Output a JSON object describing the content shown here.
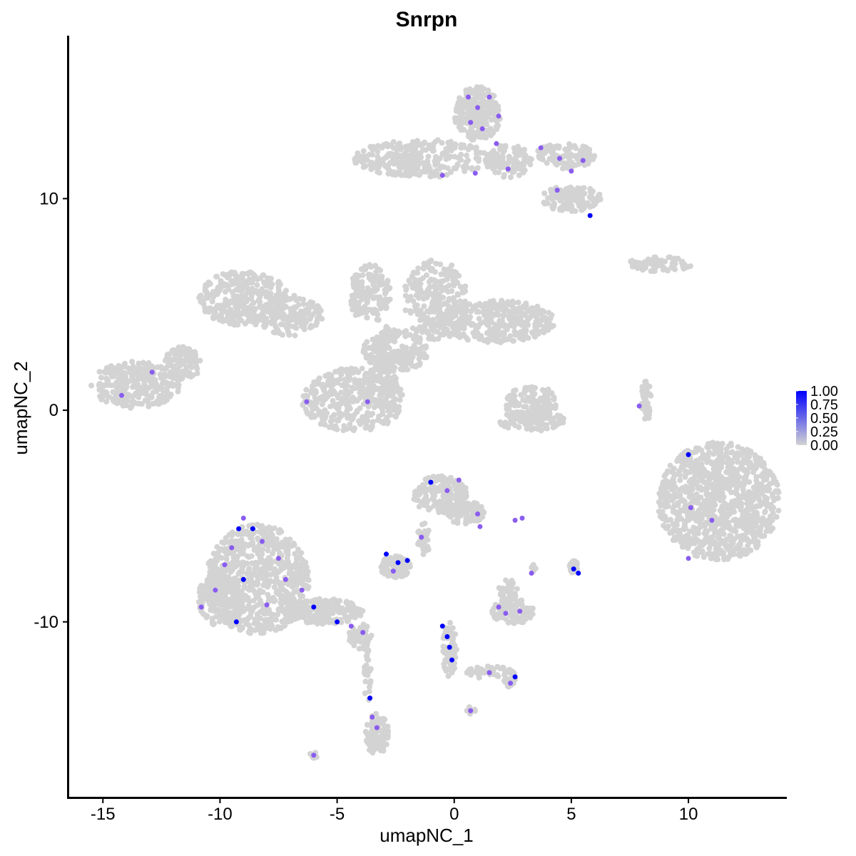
{
  "chart_data": {
    "type": "scatter",
    "title": "Snrpn",
    "xlabel": "umapNC_1",
    "ylabel": "umapNC_2",
    "xlim": [
      -16.5,
      14.2
    ],
    "ylim": [
      -18.3,
      17.7
    ],
    "x_ticks": [
      -15,
      -10,
      -5,
      0,
      5,
      10
    ],
    "y_ticks": [
      -10,
      0,
      10
    ],
    "x_tick_labels": [
      "-15",
      "-10",
      "-5",
      "0",
      "5",
      "10"
    ],
    "y_tick_labels": [
      "-10",
      "0",
      "10"
    ],
    "legend": {
      "type": "colorbar",
      "placement": "right",
      "min": 0,
      "max": 1,
      "labels": [
        "1.00",
        "0.75",
        "0.50",
        "0.25",
        "0.00"
      ],
      "low_color": "#d3d3d3",
      "high_color": "#0000ff"
    },
    "point_color_base": "#d3d3d3",
    "point_color_mid": "#8a5cf0",
    "point_color_high": "#0000ff",
    "clusters": [
      {
        "cx": -9.0,
        "cy": 5.3,
        "rx": 1.9,
        "ry": 1.3,
        "n": 320
      },
      {
        "cx": -7.0,
        "cy": 4.5,
        "rx": 1.4,
        "ry": 1.0,
        "n": 140
      },
      {
        "cx": -3.6,
        "cy": 5.5,
        "rx": 0.9,
        "ry": 1.4,
        "n": 150
      },
      {
        "cx": -0.8,
        "cy": 5.2,
        "rx": 1.4,
        "ry": 1.9,
        "n": 260
      },
      {
        "cx": 1.8,
        "cy": 4.2,
        "rx": 2.5,
        "ry": 1.0,
        "n": 330
      },
      {
        "cx": -2.5,
        "cy": 2.8,
        "rx": 1.4,
        "ry": 1.0,
        "n": 180
      },
      {
        "cx": -4.3,
        "cy": 0.5,
        "rx": 2.2,
        "ry": 1.5,
        "n": 380
      },
      {
        "cx": -2.9,
        "cy": 2.2,
        "rx": 0.5,
        "ry": 1.8,
        "n": 90
      },
      {
        "cx": -13.6,
        "cy": 1.2,
        "rx": 1.9,
        "ry": 1.1,
        "n": 300
      },
      {
        "cx": -11.6,
        "cy": 2.2,
        "rx": 0.8,
        "ry": 0.8,
        "n": 90
      },
      {
        "cx": 3.3,
        "cy": 0.3,
        "rx": 1.1,
        "ry": 0.9,
        "n": 150
      },
      {
        "cx": 3.3,
        "cy": -0.5,
        "rx": 1.4,
        "ry": 0.5,
        "n": 90
      },
      {
        "cx": 11.3,
        "cy": -4.3,
        "rx": 2.6,
        "ry": 2.8,
        "n": 950
      },
      {
        "cx": 8.2,
        "cy": 0.5,
        "rx": 0.25,
        "ry": 1.0,
        "n": 40
      },
      {
        "cx": -8.4,
        "cy": -8.0,
        "rx": 2.2,
        "ry": 2.6,
        "n": 720
      },
      {
        "cx": -10.0,
        "cy": -9.0,
        "rx": 1.0,
        "ry": 1.2,
        "n": 180
      },
      {
        "cx": -5.6,
        "cy": -9.5,
        "rx": 1.7,
        "ry": 0.6,
        "n": 220
      },
      {
        "cx": -4.0,
        "cy": -10.7,
        "rx": 0.5,
        "ry": 0.6,
        "n": 50
      },
      {
        "cx": -3.3,
        "cy": -15.3,
        "rx": 0.5,
        "ry": 1.0,
        "n": 90
      },
      {
        "cx": -3.7,
        "cy": -12.5,
        "rx": 0.15,
        "ry": 1.4,
        "n": 25
      },
      {
        "cx": -0.6,
        "cy": -4.0,
        "rx": 1.2,
        "ry": 0.9,
        "n": 170
      },
      {
        "cx": 0.5,
        "cy": -4.9,
        "rx": 0.8,
        "ry": 0.6,
        "n": 80
      },
      {
        "cx": -1.3,
        "cy": -6.1,
        "rx": 0.3,
        "ry": 0.8,
        "n": 30
      },
      {
        "cx": -2.5,
        "cy": -7.4,
        "rx": 0.7,
        "ry": 0.5,
        "n": 110
      },
      {
        "cx": 2.5,
        "cy": -9.5,
        "rx": 0.9,
        "ry": 0.6,
        "n": 110
      },
      {
        "cx": 2.3,
        "cy": -8.5,
        "rx": 0.4,
        "ry": 0.5,
        "n": 30
      },
      {
        "cx": 5.1,
        "cy": -7.4,
        "rx": 0.2,
        "ry": 0.3,
        "n": 40
      },
      {
        "cx": -0.2,
        "cy": -11.3,
        "rx": 0.3,
        "ry": 1.3,
        "n": 80
      },
      {
        "cx": 1.5,
        "cy": -12.4,
        "rx": 1.0,
        "ry": 0.3,
        "n": 40
      },
      {
        "cx": 2.4,
        "cy": -12.7,
        "rx": 0.3,
        "ry": 0.4,
        "n": 25
      },
      {
        "cx": 1.0,
        "cy": 14.0,
        "rx": 1.0,
        "ry": 1.3,
        "n": 220
      },
      {
        "cx": -1.4,
        "cy": 11.9,
        "rx": 2.9,
        "ry": 0.9,
        "n": 280
      },
      {
        "cx": 2.3,
        "cy": 11.8,
        "rx": 1.0,
        "ry": 0.8,
        "n": 110
      },
      {
        "cx": 4.7,
        "cy": 12.0,
        "rx": 1.3,
        "ry": 0.6,
        "n": 120
      },
      {
        "cx": 5.0,
        "cy": 10.0,
        "rx": 1.3,
        "ry": 0.6,
        "n": 130
      },
      {
        "cx": 8.8,
        "cy": 6.9,
        "rx": 1.4,
        "ry": 0.35,
        "n": 80
      },
      {
        "cx": 0.7,
        "cy": -14.2,
        "rx": 0.2,
        "ry": 0.2,
        "n": 10
      },
      {
        "cx": -6.0,
        "cy": -16.3,
        "rx": 0.2,
        "ry": 0.15,
        "n": 10
      },
      {
        "cx": 3.4,
        "cy": -7.5,
        "rx": 0.1,
        "ry": 0.3,
        "n": 8
      }
    ],
    "highlighted_points": [
      {
        "x": -9.0,
        "y": -5.1,
        "value": 0.8
      },
      {
        "x": -9.2,
        "y": -5.6,
        "value": 1.0
      },
      {
        "x": -8.6,
        "y": -5.6,
        "value": 1.0
      },
      {
        "x": -9.0,
        "y": -8.0,
        "value": 1.0
      },
      {
        "x": -9.3,
        "y": -10.0,
        "value": 1.0
      },
      {
        "x": -5.0,
        "y": -10.0,
        "value": 0.9
      },
      {
        "x": -6.0,
        "y": -9.3,
        "value": 0.9
      },
      {
        "x": -1.0,
        "y": -3.4,
        "value": 1.0
      },
      {
        "x": -2.9,
        "y": -6.8,
        "value": 1.0
      },
      {
        "x": -2.0,
        "y": -7.1,
        "value": 1.0
      },
      {
        "x": -2.4,
        "y": -7.2,
        "value": 1.0
      },
      {
        "x": 5.1,
        "y": -7.5,
        "value": 1.0
      },
      {
        "x": 5.3,
        "y": -7.7,
        "value": 1.0
      },
      {
        "x": -0.5,
        "y": -10.2,
        "value": 1.0
      },
      {
        "x": -0.3,
        "y": -10.7,
        "value": 1.0
      },
      {
        "x": -0.2,
        "y": -11.2,
        "value": 1.0
      },
      {
        "x": -0.1,
        "y": -11.8,
        "value": 1.0
      },
      {
        "x": 2.6,
        "y": -12.6,
        "value": 1.0
      },
      {
        "x": -3.6,
        "y": -13.6,
        "value": 1.0
      },
      {
        "x": 5.8,
        "y": 9.2,
        "value": 1.0
      },
      {
        "x": 10.0,
        "y": -2.1,
        "value": 0.9
      },
      {
        "x": -10.2,
        "y": -8.5,
        "value": 0.55
      },
      {
        "x": -9.8,
        "y": -7.3,
        "value": 0.55
      },
      {
        "x": -9.5,
        "y": -6.5,
        "value": 0.55
      },
      {
        "x": -8.2,
        "y": -6.2,
        "value": 0.55
      },
      {
        "x": -7.5,
        "y": -7.0,
        "value": 0.55
      },
      {
        "x": -7.2,
        "y": -8.0,
        "value": 0.55
      },
      {
        "x": -8.0,
        "y": -9.2,
        "value": 0.55
      },
      {
        "x": -10.8,
        "y": -9.3,
        "value": 0.55
      },
      {
        "x": -6.5,
        "y": -8.5,
        "value": 0.55
      },
      {
        "x": -4.4,
        "y": -10.2,
        "value": 0.55
      },
      {
        "x": -3.9,
        "y": -10.5,
        "value": 0.55
      },
      {
        "x": -3.3,
        "y": -15.0,
        "value": 0.55
      },
      {
        "x": -3.5,
        "y": -14.5,
        "value": 0.55
      },
      {
        "x": -6.0,
        "y": -16.3,
        "value": 0.55
      },
      {
        "x": 0.7,
        "y": -14.2,
        "value": 0.55
      },
      {
        "x": -0.3,
        "y": -3.8,
        "value": 0.55
      },
      {
        "x": 0.2,
        "y": -3.3,
        "value": 0.55
      },
      {
        "x": 1.0,
        "y": -4.9,
        "value": 0.55
      },
      {
        "x": 1.1,
        "y": -5.5,
        "value": 0.55
      },
      {
        "x": -1.4,
        "y": -6.0,
        "value": 0.55
      },
      {
        "x": -2.6,
        "y": -7.6,
        "value": 0.55
      },
      {
        "x": 2.2,
        "y": -9.6,
        "value": 0.55
      },
      {
        "x": 2.8,
        "y": -9.5,
        "value": 0.55
      },
      {
        "x": 1.9,
        "y": -9.3,
        "value": 0.55
      },
      {
        "x": 3.3,
        "y": -7.7,
        "value": 0.55
      },
      {
        "x": 1.5,
        "y": -12.4,
        "value": 0.55
      },
      {
        "x": 2.4,
        "y": -12.9,
        "value": 0.55
      },
      {
        "x": 2.6,
        "y": -5.2,
        "value": 0.55
      },
      {
        "x": 2.9,
        "y": -5.1,
        "value": 0.55
      },
      {
        "x": -12.9,
        "y": 1.8,
        "value": 0.55
      },
      {
        "x": -14.2,
        "y": 0.7,
        "value": 0.55
      },
      {
        "x": -6.3,
        "y": 0.4,
        "value": 0.55
      },
      {
        "x": -3.7,
        "y": 0.4,
        "value": 0.55
      },
      {
        "x": 7.9,
        "y": 0.2,
        "value": 0.55
      },
      {
        "x": 10.1,
        "y": -4.6,
        "value": 0.55
      },
      {
        "x": 11.0,
        "y": -5.2,
        "value": 0.55
      },
      {
        "x": 10.0,
        "y": -7.0,
        "value": 0.55
      },
      {
        "x": 0.6,
        "y": 14.8,
        "value": 0.55
      },
      {
        "x": 1.5,
        "y": 14.8,
        "value": 0.55
      },
      {
        "x": 1.0,
        "y": 14.3,
        "value": 0.55
      },
      {
        "x": 1.9,
        "y": 13.9,
        "value": 0.55
      },
      {
        "x": 0.7,
        "y": 13.6,
        "value": 0.55
      },
      {
        "x": 1.2,
        "y": 13.3,
        "value": 0.55
      },
      {
        "x": 1.8,
        "y": 12.6,
        "value": 0.55
      },
      {
        "x": 0.9,
        "y": 11.2,
        "value": 0.55
      },
      {
        "x": 2.3,
        "y": 11.4,
        "value": 0.55
      },
      {
        "x": 3.7,
        "y": 12.4,
        "value": 0.55
      },
      {
        "x": 4.5,
        "y": 11.9,
        "value": 0.55
      },
      {
        "x": 5.0,
        "y": 11.3,
        "value": 0.55
      },
      {
        "x": 5.5,
        "y": 11.8,
        "value": 0.55
      },
      {
        "x": 4.4,
        "y": 10.4,
        "value": 0.55
      },
      {
        "x": -0.5,
        "y": 11.1,
        "value": 0.55
      }
    ]
  }
}
